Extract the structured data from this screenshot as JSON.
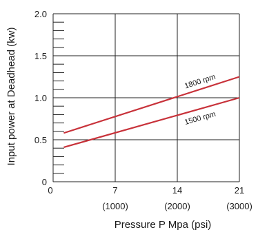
{
  "chart_data": {
    "type": "line",
    "xlabel": "Pressure P Mpa (psi)",
    "ylabel": "Input power at Deadhead (kw)",
    "xlim": [
      0,
      21
    ],
    "ylim": [
      0,
      2.0
    ],
    "x_ticks": [
      {
        "value": 0,
        "label": "0",
        "sublabel": ""
      },
      {
        "value": 7,
        "label": "7",
        "sublabel": "(1000)"
      },
      {
        "value": 14,
        "label": "14",
        "sublabel": "(2000)"
      },
      {
        "value": 21,
        "label": "21",
        "sublabel": "(3000)"
      }
    ],
    "y_ticks": [
      {
        "value": 0,
        "label": "0"
      },
      {
        "value": 0.5,
        "label": "0.5"
      },
      {
        "value": 1.0,
        "label": "1.0"
      },
      {
        "value": 1.5,
        "label": "1.5"
      },
      {
        "value": 2.0,
        "label": "2.0"
      }
    ],
    "y_minor_step": 0.1,
    "grid": true,
    "series_color": "#c8323a",
    "series": [
      {
        "name": "1800 rpm",
        "x": [
          1.2,
          21
        ],
        "values": [
          0.58,
          1.25
        ]
      },
      {
        "name": "1500 rpm",
        "x": [
          1.2,
          21
        ],
        "values": [
          0.41,
          1.0
        ]
      }
    ]
  }
}
